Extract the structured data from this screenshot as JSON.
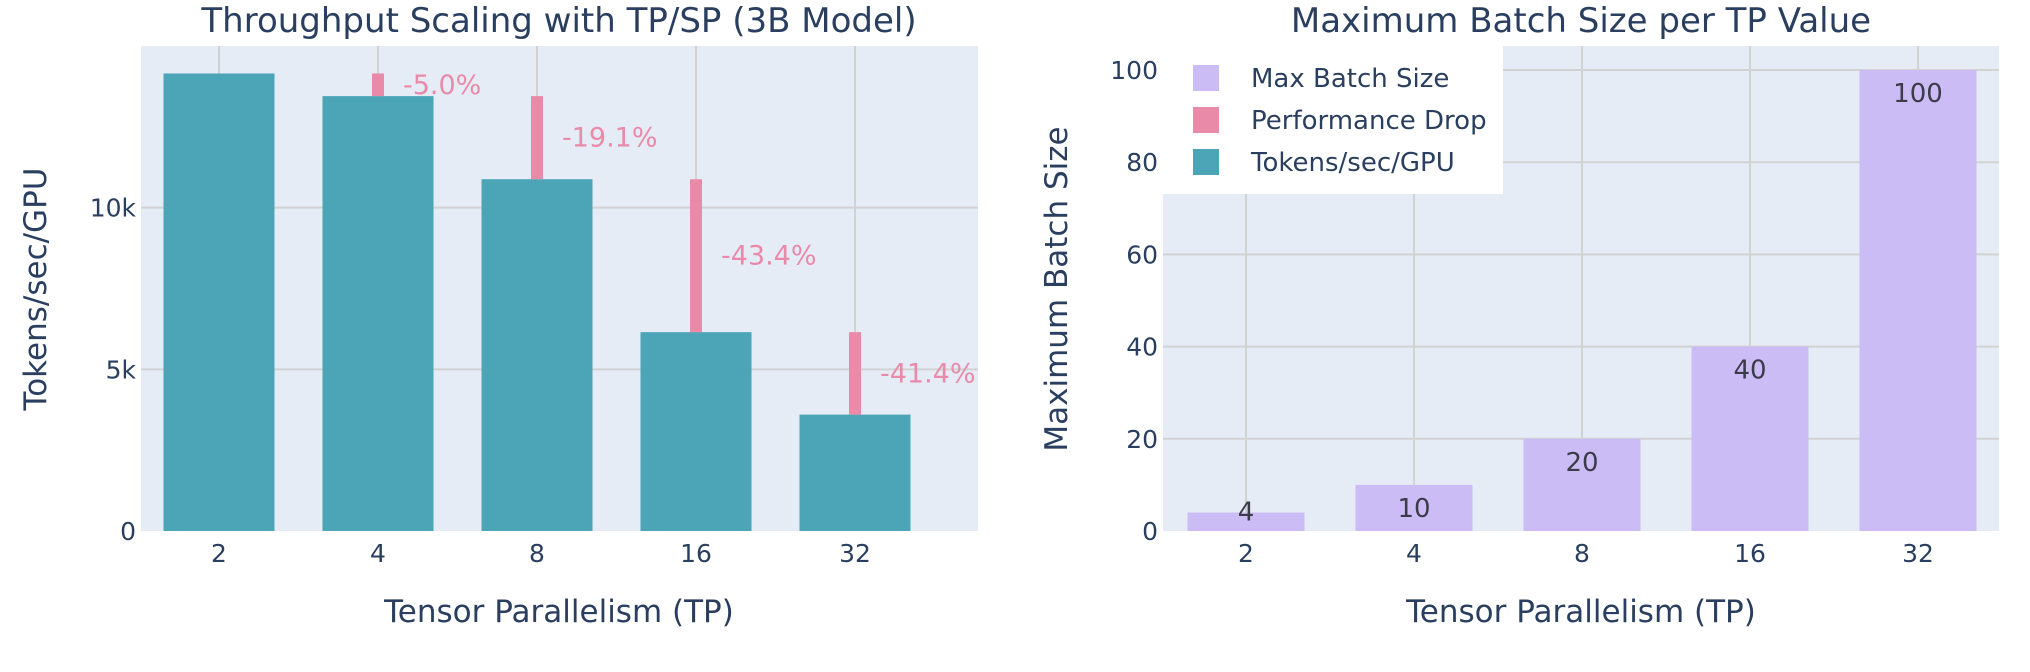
{
  "chart_data": [
    {
      "type": "bar",
      "title": "Throughput Scaling with TP/SP (3B Model)",
      "xlabel": "Tensor Parallelism (TP)",
      "ylabel": "Tokens/sec/GPU",
      "categories": [
        "2",
        "4",
        "8",
        "16",
        "32"
      ],
      "ylim": [
        0,
        15000
      ],
      "yticks": [
        0,
        5000,
        10000
      ],
      "ytick_labels": [
        "0",
        "5k",
        "10k"
      ],
      "series": [
        {
          "name": "Tokens/sec/GPU",
          "color": "#4ca5b6",
          "values": [
            14150,
            13450,
            10880,
            6150,
            3600
          ]
        }
      ],
      "drops": [
        {
          "category": "4",
          "from": 14150,
          "to": 13450,
          "label": "-5.0%"
        },
        {
          "category": "8",
          "from": 13450,
          "to": 10880,
          "label": "-19.1%"
        },
        {
          "category": "16",
          "from": 10880,
          "to": 6150,
          "label": "-43.4%"
        },
        {
          "category": "32",
          "from": 6150,
          "to": 3600,
          "label": "-41.4%"
        }
      ],
      "drop_color": "#ea8aa9"
    },
    {
      "type": "bar",
      "title": "Maximum Batch Size per TP Value",
      "xlabel": "Tensor Parallelism (TP)",
      "ylabel": "Maximum Batch Size",
      "categories": [
        "2",
        "4",
        "8",
        "16",
        "32"
      ],
      "ylim": [
        0,
        100
      ],
      "yticks": [
        0,
        20,
        40,
        60,
        80,
        100
      ],
      "ytick_labels": [
        "0",
        "20",
        "40",
        "60",
        "80",
        "100"
      ],
      "series": [
        {
          "name": "Max Batch Size",
          "color": "#cbbcf6",
          "values": [
            4,
            10,
            20,
            40,
            100
          ],
          "labels": [
            "4",
            "10",
            "20",
            "40",
            "100"
          ]
        }
      ],
      "legend": [
        {
          "name": "Max Batch Size",
          "color": "#cbbcf6"
        },
        {
          "name": "Performance Drop",
          "color": "#ea8aa9"
        },
        {
          "name": "Tokens/sec/GPU",
          "color": "#4ca5b6"
        }
      ],
      "legend_position": "top-left"
    }
  ],
  "colors": {
    "plot_bg": "#e5ecf6",
    "grid": "#d2d2d2",
    "text": "#2a3f5f"
  }
}
